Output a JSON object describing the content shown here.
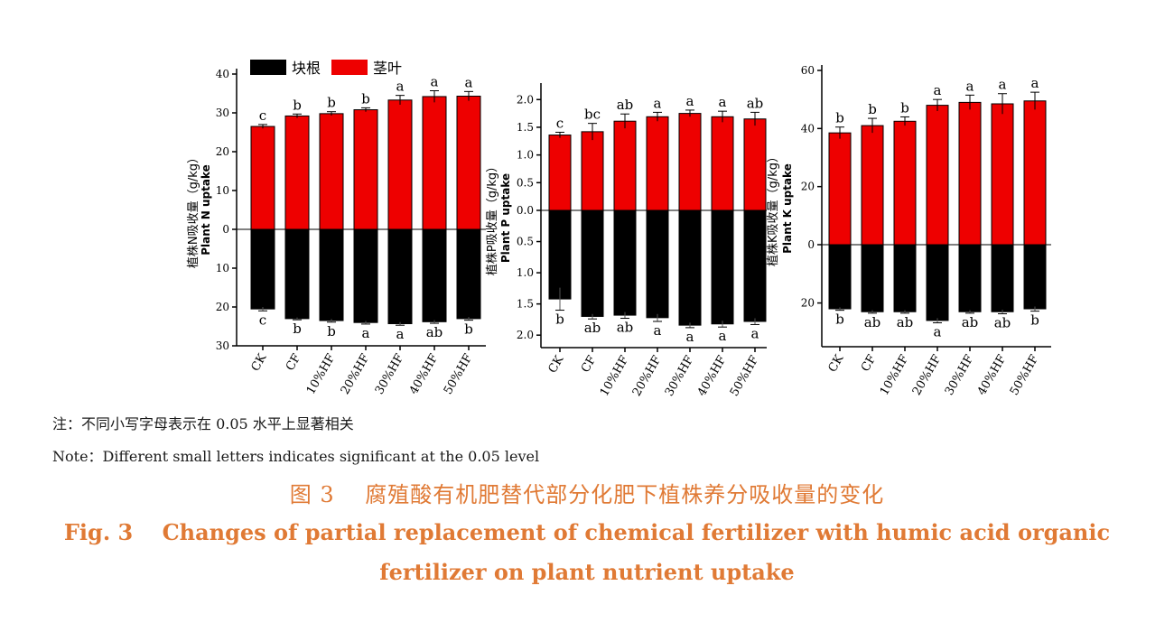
{
  "legend": [
    {
      "label": "块根",
      "color": "#000000"
    },
    {
      "label": "茎叶",
      "color": "#ee0000"
    }
  ],
  "notes": {
    "cn": "注：不同小写字母表示在 0.05 水平上显著相关",
    "en": "Note：Different small letters indicates significant at the 0.05 level"
  },
  "caption": {
    "cn": "图 3　 腐殖酸有机肥替代部分化肥下植株养分吸收量的变化",
    "en_line1": "Fig. 3　 Changes of partial replacement of chemical fertilizer with humic acid organic",
    "en_line2": "fertilizer on plant nutrient uptake"
  },
  "chart_data": [
    {
      "type": "bar",
      "subtype": "diverging-stacked",
      "ylabel_cn": "植株N吸收量（g/kg）",
      "ylabel_en": "Plant N uptake",
      "categories": [
        "CK",
        "CF",
        "10%HF",
        "20%HF",
        "30%HF",
        "40%HF",
        "50%HF"
      ],
      "up_ticks": [
        0,
        10,
        20,
        30,
        40
      ],
      "down_ticks": [
        0,
        10,
        20,
        30
      ],
      "up_lim": 40,
      "down_lim": 30,
      "series": [
        {
          "name": "茎叶",
          "direction": "up",
          "values": [
            26.5,
            29.2,
            29.8,
            30.8,
            33.3,
            34.2,
            34.3
          ],
          "errors": [
            0.5,
            0.5,
            0.5,
            0.5,
            1.2,
            1.5,
            1.2
          ],
          "letters": [
            "c",
            "b",
            "b",
            "b",
            "a",
            "a",
            "a"
          ]
        },
        {
          "name": "块根",
          "direction": "down",
          "values": [
            20.5,
            23.0,
            23.5,
            24.0,
            24.3,
            23.8,
            23.0
          ],
          "errors": [
            0.5,
            0.3,
            0.4,
            0.4,
            0.4,
            0.4,
            0.4
          ],
          "letters": [
            "c",
            "b",
            "b",
            "a",
            "a",
            "ab",
            "b"
          ]
        }
      ]
    },
    {
      "type": "bar",
      "subtype": "diverging-stacked",
      "ylabel_cn": "植株P吸收量（g/kg）",
      "ylabel_en": "Plant P uptake",
      "categories": [
        "CK",
        "CF",
        "10%HF",
        "20%HF",
        "30%HF",
        "40%HF",
        "50%HF"
      ],
      "up_ticks": [
        "0.0",
        "0.5",
        "1.0",
        "1.5",
        "2.0"
      ],
      "down_ticks": [
        "0.5",
        "1.0",
        "1.5",
        "2.0"
      ],
      "up_lim": 2.2,
      "down_lim": 2.2,
      "series": [
        {
          "name": "茎叶",
          "direction": "up",
          "values": [
            1.36,
            1.42,
            1.61,
            1.69,
            1.75,
            1.69,
            1.65
          ],
          "errors": [
            0.05,
            0.15,
            0.13,
            0.08,
            0.06,
            0.1,
            0.12
          ],
          "letters": [
            "c",
            "bc",
            "ab",
            "a",
            "a",
            "a",
            "ab"
          ]
        },
        {
          "name": "块根",
          "direction": "down",
          "values": [
            1.42,
            1.7,
            1.68,
            1.72,
            1.84,
            1.82,
            1.78
          ],
          "errors": [
            0.18,
            0.04,
            0.05,
            0.06,
            0.04,
            0.05,
            0.05
          ],
          "letters": [
            "b",
            "ab",
            "ab",
            "a",
            "a",
            "a",
            "a"
          ]
        }
      ]
    },
    {
      "type": "bar",
      "subtype": "diverging-stacked",
      "ylabel_cn": "植株K吸收量（g/kg）",
      "ylabel_en": "Plant K uptake",
      "categories": [
        "CK",
        "CF",
        "10%HF",
        "20%HF",
        "30%HF",
        "40%HF",
        "50%HF"
      ],
      "up_ticks": [
        0,
        20,
        40,
        60
      ],
      "down_ticks": [
        20
      ],
      "up_lim": 60,
      "down_lim": 35,
      "series": [
        {
          "name": "茎叶",
          "direction": "up",
          "values": [
            38.5,
            41.0,
            42.5,
            48.0,
            49.0,
            48.5,
            49.5
          ],
          "errors": [
            2.0,
            2.5,
            1.5,
            2.0,
            2.5,
            3.5,
            3.0
          ],
          "letters": [
            "b",
            "b",
            "b",
            "a",
            "a",
            "a",
            "a"
          ]
        },
        {
          "name": "块根",
          "direction": "down",
          "values": [
            22.0,
            23.0,
            23.0,
            26.0,
            23.0,
            23.0,
            22.0
          ],
          "errors": [
            0.5,
            0.5,
            0.5,
            0.8,
            0.5,
            0.7,
            0.8
          ],
          "letters": [
            "b",
            "ab",
            "ab",
            "a",
            "ab",
            "ab",
            "b"
          ]
        }
      ]
    }
  ]
}
